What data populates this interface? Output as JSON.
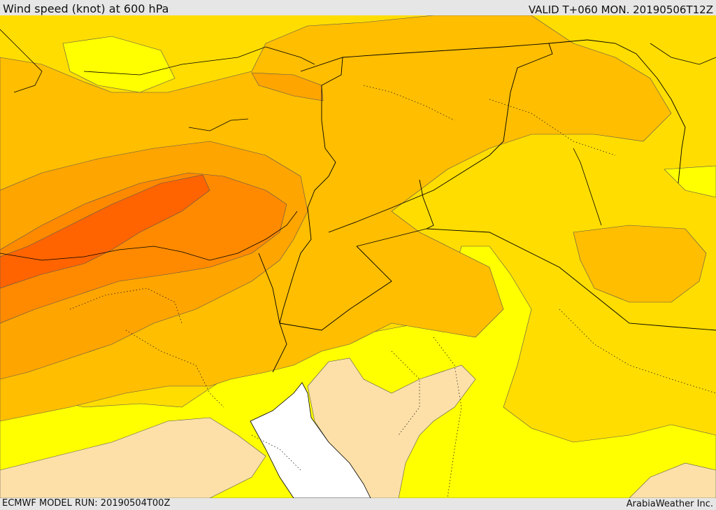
{
  "header": {
    "title": "Wind speed (knot) at 600 hPa",
    "valid": "VALID T+060 MON. 20190506T12Z"
  },
  "footer": {
    "model_run": "ECMWF MODEL RUN: 20190504T00Z",
    "credit": "ArabiaWeather Inc."
  },
  "colors": {
    "peach": "#fde0a8",
    "yellow": "#ffff00",
    "gold": "#ffdd00",
    "amber": "#ffbe00",
    "orange_light": "#ffa500",
    "orange": "#ff8a00",
    "orange_dark": "#ff6400",
    "sea": "#ffffff",
    "border": "#000000"
  }
}
